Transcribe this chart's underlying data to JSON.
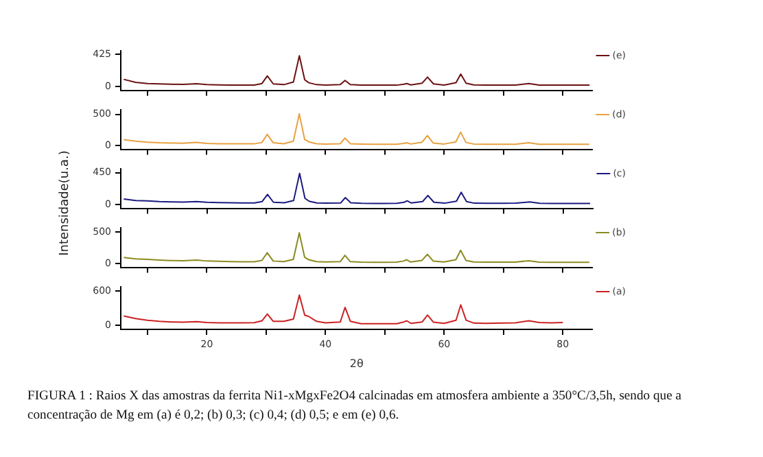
{
  "chart_data": [
    {
      "type": "line",
      "x": [
        6,
        8,
        10,
        12,
        14,
        16,
        18.3,
        20,
        22,
        24,
        26,
        28,
        29.3,
        30.2,
        31.2,
        33,
        34.6,
        35.6,
        36.5,
        37.2,
        38.5,
        40,
        42.5,
        43.3,
        44.2,
        46,
        48,
        50,
        52,
        53.2,
        53.7,
        54.4,
        56.3,
        57.2,
        58.2,
        60,
        62,
        62.8,
        63.7,
        65,
        67,
        70,
        72,
        74.3,
        76,
        78,
        80,
        82,
        84.5
      ],
      "xlim": [
        5.5,
        85
      ],
      "xticks": [
        {
          "value": 10,
          "label": null
        },
        20,
        {
          "value": 30,
          "label": null
        },
        40,
        {
          "value": 50,
          "label": null
        },
        60,
        {
          "value": 70,
          "label": null
        },
        80
      ],
      "ylim": [
        -50,
        470
      ],
      "yticks": [
        0,
        425
      ],
      "tick_labels": "y",
      "legend": "top right",
      "series": [
        {
          "name": "(e)",
          "color": "#6b1010",
          "values": [
            95,
            55,
            40,
            35,
            30,
            28,
            38,
            25,
            22,
            20,
            20,
            20,
            40,
            140,
            35,
            25,
            60,
            408,
            90,
            50,
            25,
            20,
            25,
            80,
            25,
            18,
            18,
            18,
            18,
            30,
            40,
            22,
            45,
            125,
            35,
            20,
            50,
            165,
            45,
            22,
            18,
            18,
            20,
            40,
            20,
            18,
            18,
            18,
            18
          ]
        }
      ]
    },
    {
      "type": "line",
      "x": [
        6,
        8,
        10,
        12,
        14,
        16,
        18.3,
        20,
        22,
        24,
        26,
        28,
        29.3,
        30.2,
        31.2,
        33,
        34.6,
        35.6,
        36.5,
        37.2,
        38.5,
        40,
        42.5,
        43.3,
        44.2,
        46,
        48,
        50,
        52,
        53.2,
        53.7,
        54.4,
        56.3,
        57.2,
        58.2,
        60,
        62,
        62.8,
        63.7,
        65,
        67,
        70,
        72,
        74.3,
        76,
        78,
        80,
        82,
        84.5
      ],
      "xlim": [
        5.5,
        85
      ],
      "xticks": [
        {
          "value": 10,
          "label": null
        },
        20,
        {
          "value": 30,
          "label": null
        },
        40,
        {
          "value": 50,
          "label": null
        },
        60,
        {
          "value": 70,
          "label": null
        },
        80
      ],
      "ylim": [
        -60,
        570
      ],
      "yticks": [
        0,
        500
      ],
      "tick_labels": "y",
      "legend": "top right",
      "series": [
        {
          "name": "(d)",
          "color": "#e8a040",
          "values": [
            95,
            70,
            55,
            45,
            40,
            38,
            50,
            35,
            30,
            28,
            28,
            28,
            50,
            180,
            45,
            30,
            70,
            510,
            100,
            60,
            30,
            25,
            30,
            120,
            30,
            25,
            22,
            22,
            22,
            35,
            45,
            25,
            55,
            160,
            40,
            25,
            60,
            215,
            50,
            25,
            22,
            22,
            22,
            45,
            22,
            20,
            20,
            20,
            20
          ]
        }
      ]
    },
    {
      "type": "line",
      "x": [
        6,
        8,
        10,
        12,
        14,
        16,
        18.3,
        20,
        22,
        24,
        26,
        28,
        29.3,
        30.2,
        31.2,
        33,
        34.6,
        35.6,
        36.5,
        37.2,
        38.5,
        40,
        42.5,
        43.3,
        44.2,
        46,
        48,
        50,
        52,
        53.2,
        53.7,
        54.4,
        56.3,
        57.2,
        58.2,
        60,
        62,
        62.8,
        63.7,
        65,
        67,
        70,
        72,
        74.3,
        76,
        78,
        80,
        82,
        84.5
      ],
      "xlim": [
        5.5,
        85
      ],
      "xticks": [
        {
          "value": 10,
          "label": null
        },
        20,
        {
          "value": 30,
          "label": null
        },
        40,
        {
          "value": 50,
          "label": null
        },
        60,
        {
          "value": 70,
          "label": null
        },
        80
      ],
      "ylim": [
        -50,
        500
      ],
      "yticks": [
        0,
        450
      ],
      "tick_labels": "y",
      "legend": "top right",
      "ylabel": "Intensidade(u.a.)",
      "series": [
        {
          "name": "(c)",
          "color": "#1a1a80",
          "values": [
            80,
            60,
            55,
            45,
            40,
            38,
            45,
            35,
            30,
            28,
            25,
            25,
            45,
            145,
            35,
            28,
            60,
            440,
            90,
            50,
            25,
            22,
            25,
            100,
            28,
            20,
            18,
            18,
            20,
            35,
            55,
            25,
            45,
            130,
            35,
            22,
            50,
            175,
            45,
            22,
            20,
            20,
            22,
            40,
            20,
            18,
            18,
            18,
            18
          ]
        }
      ]
    },
    {
      "type": "line",
      "x": [
        6,
        8,
        10,
        12,
        14,
        16,
        18.3,
        20,
        22,
        24,
        26,
        28,
        29.3,
        30.2,
        31.2,
        33,
        34.6,
        35.6,
        36.5,
        37.2,
        38.5,
        40,
        42.5,
        43.3,
        44.2,
        46,
        48,
        50,
        52,
        53.2,
        53.7,
        54.4,
        56.3,
        57.2,
        58.2,
        60,
        62,
        62.8,
        63.7,
        65,
        67,
        70,
        72,
        74.3,
        76,
        78,
        80,
        82,
        84.5
      ],
      "xlim": [
        5.5,
        85
      ],
      "xticks": [
        {
          "value": 10,
          "label": null
        },
        20,
        {
          "value": 30,
          "label": null
        },
        40,
        {
          "value": 50,
          "label": null
        },
        60,
        {
          "value": 70,
          "label": null
        },
        80
      ],
      "ylim": [
        -60,
        560
      ],
      "yticks": [
        0,
        500
      ],
      "tick_labels": "y",
      "legend": "top right",
      "series": [
        {
          "name": "(b)",
          "color": "#8a8a20",
          "values": [
            95,
            75,
            65,
            55,
            48,
            45,
            55,
            40,
            35,
            30,
            28,
            28,
            50,
            170,
            40,
            30,
            65,
            485,
            100,
            60,
            30,
            25,
            30,
            130,
            30,
            22,
            20,
            20,
            22,
            40,
            60,
            25,
            50,
            145,
            38,
            25,
            60,
            210,
            50,
            25,
            22,
            22,
            22,
            45,
            22,
            20,
            20,
            20,
            20
          ]
        }
      ]
    },
    {
      "type": "line",
      "x": [
        6,
        8,
        10,
        12,
        14,
        16,
        18.3,
        20,
        22,
        24,
        26,
        28,
        29.3,
        30.2,
        31.2,
        33,
        34.6,
        35.6,
        36.5,
        37.2,
        38.5,
        40,
        42.5,
        43.3,
        44.2,
        46,
        48,
        50,
        52,
        53.2,
        53.7,
        54.4,
        56.3,
        57.2,
        58.2,
        60,
        62,
        62.8,
        63.7,
        65,
        67,
        70,
        72,
        74.3,
        76,
        78,
        80
      ],
      "xlim": [
        5.5,
        85
      ],
      "xticks": [
        {
          "value": 10,
          "label": null
        },
        20,
        {
          "value": 30,
          "label": null
        },
        40,
        {
          "value": 50,
          "label": null
        },
        60,
        {
          "value": 70,
          "label": null
        },
        80
      ],
      "ylim": [
        -70,
        670
      ],
      "yticks": [
        0,
        600
      ],
      "legend": "top right",
      "xlabel": "2θ",
      "annotations": [
        "FIGURA  1 : Raios X das amostras da ferrita Ni1-xMgxFe2O4 calcinadas em atmosfera ambiente a 350°C/3,5h, sendo que a concentração de Mg em  (a) é 0,2;  (b) 0,3; (c) 0,4; (d) 0,5; e em (e) 0,6."
      ],
      "series": [
        {
          "name": "(a)",
          "color": "#cc2020",
          "values": [
            165,
            120,
            90,
            70,
            60,
            55,
            65,
            50,
            45,
            45,
            45,
            48,
            80,
            200,
            70,
            70,
            110,
            530,
            180,
            155,
            70,
            45,
            60,
            315,
            70,
            30,
            28,
            28,
            30,
            60,
            80,
            35,
            60,
            180,
            55,
            35,
            90,
            360,
            90,
            40,
            35,
            40,
            45,
            80,
            50,
            45,
            50
          ]
        }
      ]
    }
  ]
}
